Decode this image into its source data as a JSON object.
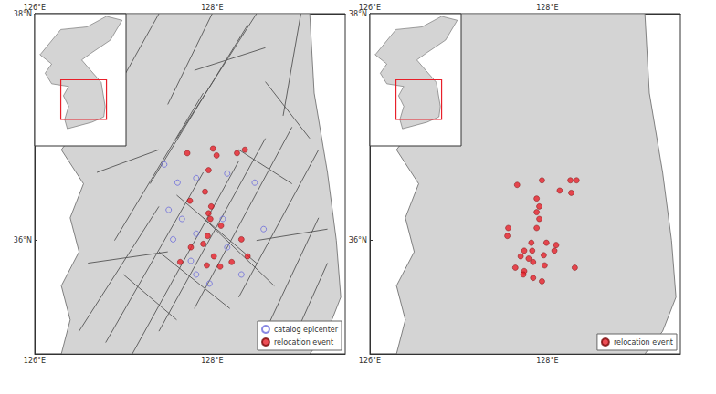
{
  "chart_data": [
    {
      "type": "scatter",
      "xlim": [
        126,
        129.5
      ],
      "ylim": [
        35,
        38
      ],
      "xticks": [
        {
          "value": 126,
          "label": "126°E"
        },
        {
          "value": 128,
          "label": "128°E"
        }
      ],
      "yticks": [
        {
          "value": 36,
          "label": "36°N"
        },
        {
          "value": 38,
          "label": "38°N"
        }
      ],
      "legend": "lower right",
      "series": [
        {
          "name": "catalog epicenter",
          "color": "#6a6adc",
          "marker": "open_circle",
          "x": [
            127.46,
            127.61,
            127.82,
            128.17,
            128.48,
            127.66,
            127.82,
            127.56,
            128.17,
            127.82,
            127.97,
            128.12,
            127.76,
            127.51,
            128.33,
            128.58
          ],
          "values": [
            36.67,
            36.51,
            36.55,
            36.59,
            36.51,
            36.19,
            36.06,
            36.01,
            35.94,
            35.7,
            35.62,
            36.19,
            35.82,
            36.27,
            35.7,
            36.1
          ]
        },
        {
          "name": "relocation event",
          "color": "#e8202a",
          "marker": "circle",
          "x": [
            127.72,
            128.01,
            128.05,
            128.28,
            128.37,
            127.96,
            127.92,
            127.99,
            127.75,
            127.96,
            128.1,
            127.95,
            127.9,
            127.76,
            128.02,
            127.64,
            127.94,
            128.09,
            128.22,
            128.33,
            128.4,
            127.98
          ],
          "values": [
            36.77,
            36.81,
            36.75,
            36.77,
            36.8,
            36.62,
            36.43,
            36.3,
            36.35,
            36.24,
            36.13,
            36.04,
            35.97,
            35.94,
            35.86,
            35.81,
            35.78,
            35.77,
            35.81,
            36.01,
            35.86,
            36.19
          ]
        }
      ],
      "land": [
        [
          126.7,
          38
        ],
        [
          129.1,
          38
        ],
        [
          129.15,
          37.3
        ],
        [
          129.3,
          36.6
        ],
        [
          129.4,
          36.0
        ],
        [
          129.45,
          35.5
        ],
        [
          129.3,
          35.2
        ],
        [
          129.1,
          35.0
        ],
        [
          126.3,
          35.0
        ],
        [
          126.4,
          35.3
        ],
        [
          126.3,
          35.6
        ],
        [
          126.5,
          35.9
        ],
        [
          126.4,
          36.2
        ],
        [
          126.55,
          36.5
        ],
        [
          126.3,
          36.8
        ],
        [
          126.6,
          37.1
        ],
        [
          126.5,
          37.4
        ],
        [
          126.7,
          37.7
        ]
      ],
      "faults": [
        [
          [
            126.5,
            35.2
          ],
          [
            127.4,
            36.3
          ]
        ],
        [
          [
            126.8,
            35.1
          ],
          [
            127.9,
            36.6
          ]
        ],
        [
          [
            127.1,
            35.0
          ],
          [
            128.3,
            36.7
          ]
        ],
        [
          [
            127.4,
            35.2
          ],
          [
            128.6,
            36.9
          ]
        ],
        [
          [
            127.8,
            35.4
          ],
          [
            128.9,
            37.0
          ]
        ],
        [
          [
            126.9,
            36.0
          ],
          [
            127.9,
            37.3
          ]
        ],
        [
          [
            127.3,
            36.5
          ],
          [
            128.4,
            37.9
          ]
        ],
        [
          [
            127.6,
            36.9
          ],
          [
            128.5,
            38.0
          ]
        ],
        [
          [
            128.3,
            35.5
          ],
          [
            129.2,
            36.8
          ]
        ],
        [
          [
            128.6,
            35.2
          ],
          [
            129.2,
            36.2
          ]
        ],
        [
          [
            128.9,
            35.1
          ],
          [
            129.3,
            35.8
          ]
        ],
        [
          [
            127.5,
            37.2
          ],
          [
            128.0,
            38.0
          ]
        ],
        [
          [
            126.9,
            37.3
          ],
          [
            127.4,
            38.0
          ]
        ],
        [
          [
            128.8,
            37.1
          ],
          [
            129.0,
            38.0
          ]
        ],
        [
          [
            127.6,
            36.4
          ],
          [
            128.5,
            35.8
          ]
        ],
        [
          [
            127.9,
            36.2
          ],
          [
            128.7,
            35.6
          ]
        ],
        [
          [
            127.4,
            35.9
          ],
          [
            128.2,
            35.4
          ]
        ],
        [
          [
            128.6,
            37.4
          ],
          [
            129.1,
            36.9
          ]
        ],
        [
          [
            128.3,
            36.8
          ],
          [
            128.9,
            36.5
          ]
        ],
        [
          [
            127.0,
            35.7
          ],
          [
            127.6,
            35.3
          ]
        ],
        [
          [
            126.6,
            35.8
          ],
          [
            127.5,
            35.9
          ]
        ],
        [
          [
            128.5,
            36.0
          ],
          [
            129.3,
            36.1
          ]
        ],
        [
          [
            126.7,
            36.6
          ],
          [
            127.4,
            36.8
          ]
        ],
        [
          [
            127.8,
            37.5
          ],
          [
            128.6,
            37.7
          ]
        ]
      ],
      "inset": {
        "xlim": [
          124,
          131
        ],
        "ylim": [
          33,
          43
        ],
        "land": [
          [
            124.5,
            40
          ],
          [
            126,
            41.8
          ],
          [
            128,
            42
          ],
          [
            129.5,
            42.8
          ],
          [
            130.7,
            42.5
          ],
          [
            129.8,
            41
          ],
          [
            128.3,
            40
          ],
          [
            127.6,
            39.5
          ],
          [
            128.3,
            38.7
          ],
          [
            129.1,
            37.8
          ],
          [
            129.4,
            36
          ],
          [
            129.3,
            35.2
          ],
          [
            128.4,
            34.8
          ],
          [
            126.5,
            34.3
          ],
          [
            126.3,
            35
          ],
          [
            126.6,
            36
          ],
          [
            126.2,
            36.8
          ],
          [
            126.6,
            37.5
          ],
          [
            125.3,
            37.7
          ],
          [
            124.8,
            38.5
          ],
          [
            125.3,
            39.2
          ],
          [
            124.4,
            39.9
          ]
        ]
      }
    },
    {
      "type": "scatter",
      "xlim": [
        126,
        129.5
      ],
      "ylim": [
        35,
        38
      ],
      "xticks": [
        {
          "value": 126,
          "label": "126°E"
        },
        {
          "value": 128,
          "label": "128°E"
        }
      ],
      "yticks": [
        {
          "value": 36,
          "label": "36°N"
        },
        {
          "value": 38,
          "label": "38°N"
        }
      ],
      "legend": "lower right",
      "series": [
        {
          "name": "relocation event",
          "color": "#e8202a",
          "marker": "circle",
          "x": [
            127.66,
            127.94,
            128.26,
            128.33,
            128.14,
            128.27,
            127.88,
            127.91,
            127.56,
            127.88,
            127.55,
            127.82,
            127.99,
            128.1,
            128.08,
            127.74,
            127.83,
            127.7,
            127.96,
            127.79,
            127.84,
            127.64,
            127.74,
            127.97,
            127.73,
            127.94,
            127.84,
            128.31,
            127.88,
            127.91
          ],
          "values": [
            36.49,
            36.53,
            36.53,
            36.53,
            36.44,
            36.42,
            36.25,
            36.19,
            36.11,
            36.11,
            36.04,
            35.98,
            35.98,
            35.96,
            35.91,
            35.91,
            35.91,
            35.86,
            35.87,
            35.84,
            35.81,
            35.76,
            35.73,
            35.78,
            35.7,
            35.64,
            35.67,
            35.76,
            36.37,
            36.3
          ]
        }
      ],
      "land": [
        [
          126.7,
          38
        ],
        [
          129.1,
          38
        ],
        [
          129.15,
          37.3
        ],
        [
          129.3,
          36.6
        ],
        [
          129.4,
          36.0
        ],
        [
          129.45,
          35.5
        ],
        [
          129.3,
          35.2
        ],
        [
          129.1,
          35.0
        ],
        [
          126.3,
          35.0
        ],
        [
          126.4,
          35.3
        ],
        [
          126.3,
          35.6
        ],
        [
          126.5,
          35.9
        ],
        [
          126.4,
          36.2
        ],
        [
          126.55,
          36.5
        ],
        [
          126.3,
          36.8
        ],
        [
          126.6,
          37.1
        ],
        [
          126.5,
          37.4
        ],
        [
          126.7,
          37.7
        ]
      ],
      "inset": {
        "xlim": [
          124,
          131
        ],
        "ylim": [
          33,
          43
        ],
        "land": [
          [
            124.5,
            40
          ],
          [
            126,
            41.8
          ],
          [
            128,
            42
          ],
          [
            129.5,
            42.8
          ],
          [
            130.7,
            42.5
          ],
          [
            129.8,
            41
          ],
          [
            128.3,
            40
          ],
          [
            127.6,
            39.5
          ],
          [
            128.3,
            38.7
          ],
          [
            129.1,
            37.8
          ],
          [
            129.4,
            36
          ],
          [
            129.3,
            35.2
          ],
          [
            128.4,
            34.8
          ],
          [
            126.5,
            34.3
          ],
          [
            126.3,
            35
          ],
          [
            126.6,
            36
          ],
          [
            126.2,
            36.8
          ],
          [
            126.6,
            37.5
          ],
          [
            125.3,
            37.7
          ],
          [
            124.8,
            38.5
          ],
          [
            125.3,
            39.2
          ],
          [
            124.4,
            39.9
          ]
        ]
      }
    }
  ]
}
